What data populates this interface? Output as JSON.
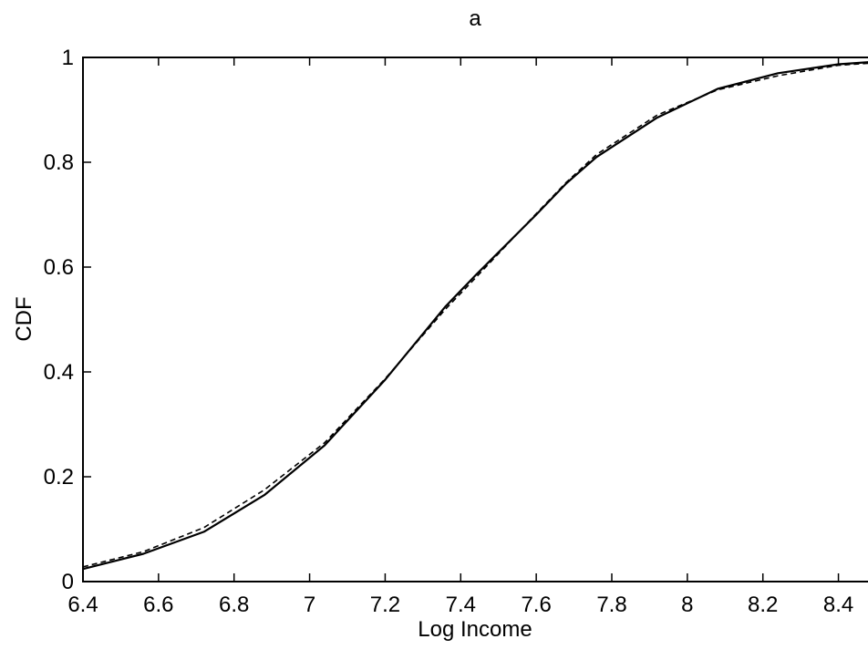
{
  "chart_data": {
    "type": "line",
    "title": "a",
    "xlabel": "Log Income",
    "ylabel": "CDF",
    "xlim": [
      6.4,
      8.5
    ],
    "ylim": [
      0,
      1
    ],
    "xticks": [
      6.4,
      6.6,
      6.8,
      7,
      7.2,
      7.4,
      7.6,
      7.8,
      8,
      8.2,
      8.4
    ],
    "xtick_labels": [
      "6.4",
      "6.6",
      "6.8",
      "7",
      "7.2",
      "7.4",
      "7.6",
      "7.8",
      "8",
      "8.2",
      "8.4"
    ],
    "yticks": [
      0,
      0.2,
      0.4,
      0.6,
      0.8,
      1
    ],
    "ytick_labels": [
      "0",
      "0.2",
      "0.4",
      "0.6",
      "0.8",
      "1"
    ],
    "grid": false,
    "series": [
      {
        "style": "solid",
        "color": "#000000",
        "x": [
          6.4,
          6.56,
          6.72,
          6.88,
          7.04,
          7.2,
          7.36,
          7.44,
          7.6,
          7.68,
          7.76,
          7.92,
          8.08,
          8.24,
          8.4,
          8.5
        ],
        "y": [
          0.024,
          0.053,
          0.095,
          0.165,
          0.26,
          0.385,
          0.525,
          0.585,
          0.7,
          0.76,
          0.81,
          0.885,
          0.94,
          0.97,
          0.987,
          0.992
        ]
      },
      {
        "style": "dashed",
        "color": "#000000",
        "x": [
          6.4,
          6.56,
          6.72,
          6.88,
          7.04,
          7.2,
          7.36,
          7.44,
          7.6,
          7.68,
          7.76,
          7.92,
          8.08,
          8.24,
          8.4,
          8.5
        ],
        "y": [
          0.028,
          0.057,
          0.103,
          0.175,
          0.265,
          0.387,
          0.52,
          0.58,
          0.702,
          0.762,
          0.815,
          0.89,
          0.938,
          0.965,
          0.985,
          0.99
        ]
      }
    ]
  }
}
